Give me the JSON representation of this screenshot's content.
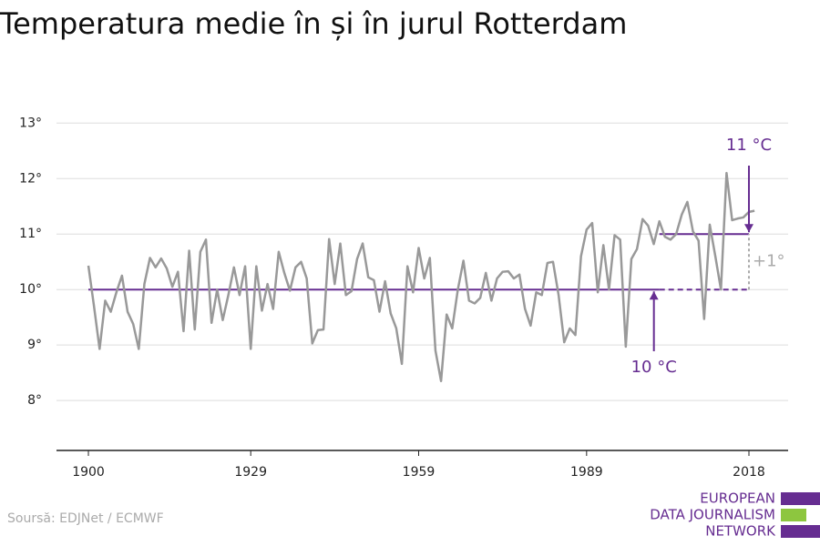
{
  "chart_data": {
    "type": "line",
    "title": "Temperatura medie în și în jurul Rotterdam",
    "source": "Soursă: EDJNet / ECMWF",
    "logo": [
      "EUROPEAN",
      "DATA JOURNALISM",
      "NETWORK"
    ],
    "x": [
      1900,
      1901,
      1902,
      1903,
      1904,
      1905,
      1906,
      1907,
      1908,
      1909,
      1910,
      1911,
      1912,
      1913,
      1914,
      1915,
      1916,
      1917,
      1918,
      1919,
      1920,
      1921,
      1922,
      1923,
      1924,
      1925,
      1926,
      1927,
      1928,
      1929,
      1930,
      1931,
      1932,
      1933,
      1934,
      1935,
      1936,
      1937,
      1938,
      1939,
      1940,
      1941,
      1942,
      1943,
      1944,
      1945,
      1946,
      1947,
      1948,
      1949,
      1950,
      1951,
      1952,
      1953,
      1954,
      1955,
      1956,
      1957,
      1958,
      1959,
      1960,
      1961,
      1962,
      1963,
      1964,
      1965,
      1966,
      1967,
      1968,
      1969,
      1970,
      1971,
      1972,
      1973,
      1974,
      1975,
      1976,
      1977,
      1978,
      1979,
      1980,
      1981,
      1982,
      1983,
      1984,
      1985,
      1986,
      1987,
      1988,
      1989,
      1990,
      1991,
      1992,
      1993,
      1994,
      1995,
      1996,
      1997,
      1998,
      1999,
      2000,
      2001,
      2002,
      2003,
      2004,
      2005,
      2006,
      2007,
      2008,
      2009,
      2010,
      2011,
      2012,
      2013,
      2014,
      2015,
      2016,
      2017,
      2018,
      2019
    ],
    "series": [
      {
        "color": "#999999",
        "values": [
          10.43,
          9.7,
          8.93,
          9.8,
          9.6,
          9.95,
          10.25,
          9.6,
          9.38,
          8.93,
          10.1,
          10.57,
          10.4,
          10.56,
          10.38,
          10.05,
          10.32,
          9.25,
          10.7,
          9.28,
          10.68,
          10.9,
          9.4,
          10.0,
          9.45,
          9.9,
          10.4,
          9.9,
          10.42,
          8.93,
          10.42,
          9.62,
          10.1,
          9.65,
          10.68,
          10.3,
          9.98,
          10.4,
          10.5,
          10.2,
          9.03,
          9.27,
          9.28,
          10.91,
          10.1,
          10.83,
          9.9,
          9.97,
          10.55,
          10.83,
          10.22,
          10.17,
          9.6,
          10.15,
          9.57,
          9.3,
          8.66,
          10.42,
          9.95,
          10.75,
          10.2,
          10.57,
          8.9,
          8.35,
          9.55,
          9.3,
          10.0,
          10.52,
          9.8,
          9.75,
          9.85,
          10.3,
          9.8,
          10.2,
          10.32,
          10.33,
          10.2,
          10.27,
          9.65,
          9.35,
          9.95,
          9.9,
          10.48,
          10.5,
          9.9,
          9.05,
          9.3,
          9.18,
          10.6,
          11.08,
          11.2,
          9.95,
          10.8,
          10.0,
          10.98,
          10.9,
          8.97,
          10.55,
          10.73,
          11.27,
          11.15,
          10.82,
          11.23,
          10.95,
          10.9,
          11.0,
          11.35,
          11.58,
          11.05,
          10.88,
          9.47,
          11.17,
          10.6,
          10.0,
          12.1,
          11.25,
          11.28,
          11.3,
          11.4,
          11.42
        ]
      }
    ],
    "baseline": {
      "label": "10 °C",
      "value": 10,
      "x_start": 1900,
      "x_solid_end": 2002,
      "x_end": 2018,
      "color": "#662d91"
    },
    "recent": {
      "label": "11 °C",
      "value": 11,
      "x_start": 2002,
      "x_end": 2018,
      "color": "#662d91"
    },
    "change": {
      "label": "+1°",
      "value": 1,
      "color": "#aaaaaa"
    },
    "xlim": [
      1894.3,
      2025
    ],
    "ylim": [
      7.1,
      13.3
    ],
    "xticks": [
      1900,
      1929,
      1959,
      1989,
      2018
    ],
    "yticks": [
      {
        "value": 8,
        "label": "8°"
      },
      {
        "value": 9,
        "label": "9°"
      },
      {
        "value": 10,
        "label": "10°"
      },
      {
        "value": 11,
        "label": "11°"
      },
      {
        "value": 12,
        "label": "12°"
      },
      {
        "value": 13,
        "label": "13°"
      }
    ],
    "grid": true
  }
}
